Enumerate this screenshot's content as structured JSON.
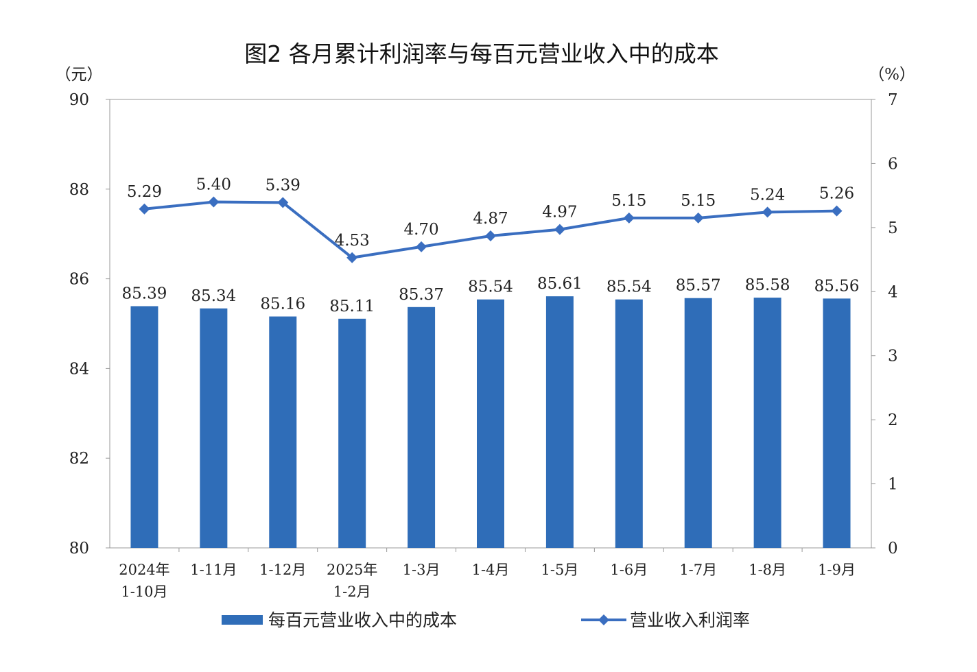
{
  "chart_data": {
    "type": "bar+line",
    "title": "图2  各月累计利润率与每百元营业收入中的成本",
    "left_unit": "（元）",
    "right_unit": "（%）",
    "categories": [
      [
        "2024年",
        "1-10月"
      ],
      [
        "1-11月"
      ],
      [
        "1-12月"
      ],
      [
        "2025年",
        "1-2月"
      ],
      [
        "1-3月"
      ],
      [
        "1-4月"
      ],
      [
        "1-5月"
      ],
      [
        "1-6月"
      ],
      [
        "1-7月"
      ],
      [
        "1-8月"
      ],
      [
        "1-9月"
      ]
    ],
    "ylim_left": [
      80,
      90
    ],
    "ylim_right": [
      0,
      7
    ],
    "left_ticks": [
      "80",
      "82",
      "84",
      "86",
      "88",
      "90"
    ],
    "right_ticks": [
      "0",
      "1",
      "2",
      "3",
      "4",
      "5",
      "6",
      "7"
    ],
    "series": [
      {
        "name": "每百元营业收入中的成本",
        "type": "bar",
        "axis": "left",
        "color": "#2f6db8",
        "values": [
          85.39,
          85.34,
          85.16,
          85.11,
          85.37,
          85.54,
          85.61,
          85.54,
          85.57,
          85.58,
          85.56
        ]
      },
      {
        "name": "营业收入利润率",
        "type": "line",
        "axis": "right",
        "color": "#3a6ec0",
        "values": [
          5.29,
          5.4,
          5.39,
          4.53,
          4.7,
          4.87,
          4.97,
          5.15,
          5.15,
          5.24,
          5.26
        ]
      }
    ],
    "legend": "bottom"
  }
}
